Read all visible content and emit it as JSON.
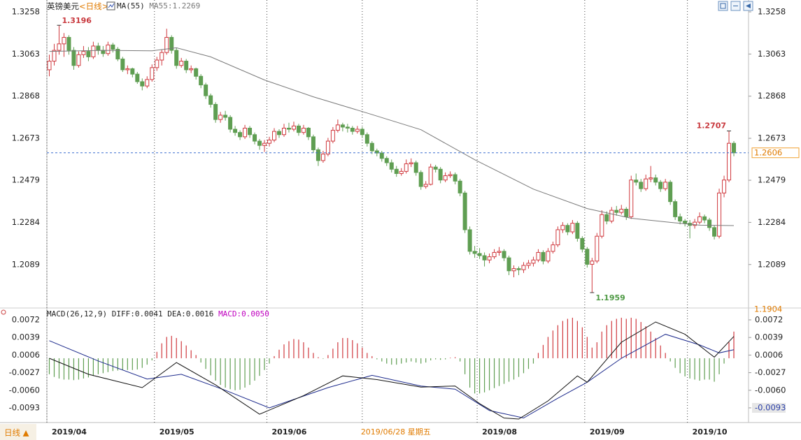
{
  "chart_data": {
    "type": "candlestick",
    "title": "英镑美元",
    "period": "<日线>",
    "indicator": "MA(55)",
    "ma_label": "MA55:1.2269",
    "period_button": "日线 ▲",
    "up_color": "#d0393e",
    "down_color": "#5f9e52",
    "ylim": [
      1.1904,
      1.3258
    ],
    "yticks": [
      1.3258,
      1.3063,
      1.2868,
      1.2673,
      1.2479,
      1.2284,
      1.2089
    ],
    "xlim": [
      -0.5,
      143
    ],
    "xticks": [
      {
        "value": -0.5,
        "label": "2019/04"
      },
      {
        "value": 21.5,
        "label": "2019/05"
      },
      {
        "value": 44.5,
        "label": "2019/06"
      },
      {
        "value": 87.5,
        "label": "2019/08"
      },
      {
        "value": 109.5,
        "label": "2019/09"
      },
      {
        "value": 130.5,
        "label": "2019/10"
      }
    ],
    "cursor": {
      "index": 64,
      "label": "2019/06/28 星期五"
    },
    "candles": [
      [
        1.299,
        1.306,
        1.296,
        1.303
      ],
      [
        1.303,
        1.311,
        1.301,
        1.308
      ],
      [
        1.308,
        1.3196,
        1.306,
        1.311
      ],
      [
        1.311,
        1.316,
        1.305,
        1.314
      ],
      [
        1.314,
        1.315,
        1.306,
        1.308
      ],
      [
        1.308,
        1.3095,
        1.299,
        1.301
      ],
      [
        1.301,
        1.3075,
        1.3,
        1.306
      ],
      [
        1.306,
        1.31,
        1.3045,
        1.3075
      ],
      [
        1.3075,
        1.3095,
        1.303,
        1.305
      ],
      [
        1.305,
        1.312,
        1.304,
        1.31
      ],
      [
        1.31,
        1.3115,
        1.306,
        1.308
      ],
      [
        1.308,
        1.31,
        1.305,
        1.3065
      ],
      [
        1.3065,
        1.312,
        1.3055,
        1.3105
      ],
      [
        1.3105,
        1.3115,
        1.307,
        1.3085
      ],
      [
        1.3085,
        1.3095,
        1.303,
        1.304
      ],
      [
        1.304,
        1.305,
        1.298,
        1.299
      ],
      [
        1.299,
        1.301,
        1.297,
        1.2995
      ],
      [
        1.2995,
        1.3,
        1.2955,
        1.297
      ],
      [
        1.297,
        1.298,
        1.2925,
        1.2935
      ],
      [
        1.2935,
        1.295,
        1.2895,
        1.2915
      ],
      [
        1.2915,
        1.296,
        1.2905,
        1.2945
      ],
      [
        1.2945,
        1.3015,
        1.2935,
        1.3
      ],
      [
        1.3,
        1.305,
        1.2985,
        1.3035
      ],
      [
        1.3035,
        1.3085,
        1.301,
        1.307
      ],
      [
        1.307,
        1.318,
        1.306,
        1.314
      ],
      [
        1.314,
        1.315,
        1.3065,
        1.308
      ],
      [
        1.308,
        1.309,
        1.2995,
        1.301
      ],
      [
        1.301,
        1.3045,
        1.3,
        1.303
      ],
      [
        1.303,
        1.304,
        1.2975,
        1.299
      ],
      [
        1.299,
        1.301,
        1.2975,
        1.2995
      ],
      [
        1.2995,
        1.3,
        1.2945,
        1.296
      ],
      [
        1.296,
        1.297,
        1.2905,
        1.292
      ],
      [
        1.292,
        1.293,
        1.2855,
        1.287
      ],
      [
        1.287,
        1.288,
        1.2815,
        1.283
      ],
      [
        1.283,
        1.284,
        1.2745,
        1.276
      ],
      [
        1.276,
        1.2795,
        1.2745,
        1.278
      ],
      [
        1.278,
        1.28,
        1.2755,
        1.277
      ],
      [
        1.277,
        1.278,
        1.27,
        1.2715
      ],
      [
        1.2715,
        1.273,
        1.2685,
        1.27
      ],
      [
        1.27,
        1.271,
        1.2665,
        1.268
      ],
      [
        1.268,
        1.2735,
        1.267,
        1.272
      ],
      [
        1.272,
        1.273,
        1.2675,
        1.269
      ],
      [
        1.269,
        1.27,
        1.2645,
        1.266
      ],
      [
        1.266,
        1.267,
        1.262,
        1.264
      ],
      [
        1.264,
        1.2665,
        1.261,
        1.265
      ],
      [
        1.265,
        1.268,
        1.2635,
        1.2665
      ],
      [
        1.2665,
        1.272,
        1.2655,
        1.2705
      ],
      [
        1.2705,
        1.2715,
        1.2675,
        1.269
      ],
      [
        1.269,
        1.274,
        1.268,
        1.272
      ],
      [
        1.272,
        1.2745,
        1.27,
        1.2715
      ],
      [
        1.2715,
        1.275,
        1.2705,
        1.273
      ],
      [
        1.273,
        1.274,
        1.2685,
        1.27
      ],
      [
        1.27,
        1.2735,
        1.269,
        1.272
      ],
      [
        1.272,
        1.2725,
        1.2665,
        1.268
      ],
      [
        1.268,
        1.269,
        1.2605,
        1.262
      ],
      [
        1.262,
        1.263,
        1.2545,
        1.257
      ],
      [
        1.257,
        1.2615,
        1.256,
        1.26
      ],
      [
        1.26,
        1.2675,
        1.259,
        1.266
      ],
      [
        1.266,
        1.2725,
        1.265,
        1.271
      ],
      [
        1.271,
        1.276,
        1.27,
        1.2735
      ],
      [
        1.2735,
        1.2745,
        1.2705,
        1.2725
      ],
      [
        1.2725,
        1.274,
        1.27,
        1.272
      ],
      [
        1.272,
        1.273,
        1.269,
        1.2705
      ],
      [
        1.2705,
        1.273,
        1.2695,
        1.2715
      ],
      [
        1.2715,
        1.2725,
        1.2675,
        1.269
      ],
      [
        1.269,
        1.27,
        1.2635,
        1.265
      ],
      [
        1.265,
        1.266,
        1.26,
        1.2615
      ],
      [
        1.2615,
        1.2625,
        1.259,
        1.2605
      ],
      [
        1.2605,
        1.2615,
        1.2565,
        1.258
      ],
      [
        1.258,
        1.259,
        1.2545,
        1.256
      ],
      [
        1.256,
        1.2575,
        1.2515,
        1.253
      ],
      [
        1.253,
        1.2545,
        1.2495,
        1.251
      ],
      [
        1.251,
        1.2535,
        1.25,
        1.252
      ],
      [
        1.252,
        1.2575,
        1.251,
        1.2555
      ],
      [
        1.2555,
        1.258,
        1.254,
        1.256
      ],
      [
        1.256,
        1.257,
        1.25,
        1.2515
      ],
      [
        1.2515,
        1.2525,
        1.2435,
        1.245
      ],
      [
        1.245,
        1.2475,
        1.244,
        1.246
      ],
      [
        1.246,
        1.2555,
        1.2455,
        1.254
      ],
      [
        1.254,
        1.255,
        1.2515,
        1.253
      ],
      [
        1.253,
        1.254,
        1.2465,
        1.248
      ],
      [
        1.248,
        1.2515,
        1.247,
        1.25
      ],
      [
        1.25,
        1.252,
        1.249,
        1.2505
      ],
      [
        1.2505,
        1.2515,
        1.246,
        1.2475
      ],
      [
        1.2475,
        1.2485,
        1.2405,
        1.242
      ],
      [
        1.242,
        1.243,
        1.2235,
        1.225
      ],
      [
        1.225,
        1.2265,
        1.2135,
        1.215
      ],
      [
        1.215,
        1.2175,
        1.212,
        1.214
      ],
      [
        1.214,
        1.2165,
        1.2115,
        1.213
      ],
      [
        1.213,
        1.2145,
        1.208,
        1.211
      ],
      [
        1.211,
        1.214,
        1.2095,
        1.2125
      ],
      [
        1.2125,
        1.216,
        1.2115,
        1.2145
      ],
      [
        1.2145,
        1.217,
        1.213,
        1.215
      ],
      [
        1.215,
        1.216,
        1.2105,
        1.212
      ],
      [
        1.212,
        1.213,
        1.204,
        1.206
      ],
      [
        1.206,
        1.2085,
        1.203,
        1.207
      ],
      [
        1.207,
        1.208,
        1.204,
        1.2065
      ],
      [
        1.2065,
        1.21,
        1.205,
        1.2085
      ],
      [
        1.2085,
        1.211,
        1.207,
        1.2095
      ],
      [
        1.2095,
        1.2125,
        1.208,
        1.211
      ],
      [
        1.211,
        1.216,
        1.21,
        1.2145
      ],
      [
        1.2145,
        1.2155,
        1.209,
        1.2105
      ],
      [
        1.2105,
        1.2165,
        1.2095,
        1.215
      ],
      [
        1.215,
        1.2195,
        1.214,
        1.218
      ],
      [
        1.218,
        1.2265,
        1.217,
        1.225
      ],
      [
        1.225,
        1.2285,
        1.2235,
        1.227
      ],
      [
        1.227,
        1.228,
        1.2225,
        1.224
      ],
      [
        1.224,
        1.2295,
        1.223,
        1.228
      ],
      [
        1.228,
        1.229,
        1.2195,
        1.221
      ],
      [
        1.221,
        1.222,
        1.2145,
        1.216
      ],
      [
        1.216,
        1.217,
        1.2075,
        1.209
      ],
      [
        1.209,
        1.212,
        1.1959,
        1.2105
      ],
      [
        1.2105,
        1.2235,
        1.2095,
        1.222
      ],
      [
        1.222,
        1.234,
        1.221,
        1.232
      ],
      [
        1.232,
        1.2335,
        1.2275,
        1.229
      ],
      [
        1.229,
        1.2355,
        1.228,
        1.234
      ],
      [
        1.234,
        1.236,
        1.2315,
        1.233
      ],
      [
        1.233,
        1.2365,
        1.232,
        1.2345
      ],
      [
        1.2345,
        1.2355,
        1.2295,
        1.231
      ],
      [
        1.231,
        1.25,
        1.23,
        1.248
      ],
      [
        1.248,
        1.251,
        1.2455,
        1.247
      ],
      [
        1.247,
        1.2485,
        1.2425,
        1.244
      ],
      [
        1.244,
        1.2505,
        1.243,
        1.2485
      ],
      [
        1.2485,
        1.2545,
        1.247,
        1.249
      ],
      [
        1.249,
        1.2505,
        1.2455,
        1.247
      ],
      [
        1.247,
        1.248,
        1.2425,
        1.244
      ],
      [
        1.244,
        1.2485,
        1.243,
        1.247
      ],
      [
        1.247,
        1.248,
        1.2365,
        1.238
      ],
      [
        1.238,
        1.239,
        1.2295,
        1.231
      ],
      [
        1.231,
        1.2325,
        1.2275,
        1.229
      ],
      [
        1.229,
        1.23,
        1.2265,
        1.228
      ],
      [
        1.228,
        1.2295,
        1.221,
        1.227
      ],
      [
        1.227,
        1.23,
        1.2255,
        1.2285
      ],
      [
        1.2285,
        1.233,
        1.2275,
        1.231
      ],
      [
        1.231,
        1.232,
        1.228,
        1.2295
      ],
      [
        1.2295,
        1.2305,
        1.2245,
        1.226
      ],
      [
        1.226,
        1.227,
        1.2205,
        1.222
      ],
      [
        1.222,
        1.244,
        1.221,
        1.242
      ],
      [
        1.242,
        1.25,
        1.24,
        1.248
      ],
      [
        1.248,
        1.2707,
        1.247,
        1.265
      ],
      [
        1.265,
        1.266,
        1.259,
        1.2606
      ]
    ],
    "ma": {
      "color": "#7a7a7a",
      "x": [
        0,
        11,
        21,
        26,
        33,
        44,
        54,
        64,
        76,
        87,
        99,
        110,
        119,
        127,
        133,
        140
      ],
      "values": [
        1.3075,
        1.308,
        1.3078,
        1.3092,
        1.305,
        1.2943,
        1.2865,
        1.2797,
        1.2713,
        1.2574,
        1.2438,
        1.2348,
        1.2303,
        1.2284,
        1.2271,
        1.2269
      ]
    },
    "macd": {
      "title": "MACD(26,12,9)",
      "diff_label": "DIFF:0.0041",
      "dea_label": "DEA:0.0016",
      "macd_label": "MACD:0.0050",
      "ylim": [
        -0.0114,
        0.0089
      ],
      "yticks": [
        0.0072,
        0.0039,
        0.0006,
        -0.0027,
        {
          "value": -0.006,
          "label": "-0.0060"
        },
        -0.0093
      ],
      "histogram": [
        -0.003,
        -0.0035,
        -0.0038,
        -0.004,
        -0.004,
        -0.0041,
        -0.004,
        -0.0038,
        -0.0036,
        -0.0033,
        -0.003,
        -0.0028,
        -0.0026,
        -0.0024,
        -0.0023,
        -0.0022,
        -0.0022,
        -0.0022,
        -0.0021,
        -0.0018,
        -0.0012,
        -0.0004,
        0.0012,
        0.0028,
        0.004,
        0.0042,
        0.0038,
        0.0032,
        0.0024,
        0.0015,
        0.0006,
        -0.0008,
        -0.002,
        -0.0032,
        -0.0042,
        -0.005,
        -0.0055,
        -0.0058,
        -0.006,
        -0.0059,
        -0.0055,
        -0.005,
        -0.0042,
        -0.0033,
        -0.0022,
        -0.001,
        0.0004,
        0.0016,
        0.0026,
        0.0032,
        0.0036,
        0.0035,
        0.003,
        0.002,
        0.001,
        0.0002,
        -0.0001,
        0.0006,
        0.0018,
        0.003,
        0.0038,
        0.0038,
        0.0034,
        0.0028,
        0.002,
        0.001,
        0.0004,
        -0.0002,
        -0.0006,
        -0.001,
        -0.0012,
        -0.0012,
        -0.001,
        -0.0008,
        -0.0006,
        -0.0008,
        -0.001,
        -0.0008,
        -0.0004,
        -0.0002,
        -0.0003,
        -0.0002,
        0.0001,
        0.0002,
        -0.0006,
        -0.003,
        -0.0055,
        -0.0066,
        -0.0066,
        -0.0064,
        -0.006,
        -0.0056,
        -0.0052,
        -0.0048,
        -0.0044,
        -0.004,
        -0.0035,
        -0.0028,
        -0.002,
        -0.001,
        0.001,
        0.0025,
        0.004,
        0.0052,
        0.0062,
        0.007,
        0.0074,
        0.0076,
        0.007,
        0.0058,
        0.004,
        0.002,
        0.003,
        0.005,
        0.0062,
        0.007,
        0.0074,
        0.0076,
        0.0074,
        0.0076,
        0.0074,
        0.0068,
        0.006,
        0.005,
        0.0038,
        0.0024,
        0.001,
        -0.0006,
        -0.0018,
        -0.0028,
        -0.0034,
        -0.0038,
        -0.004,
        -0.0042,
        -0.004,
        -0.004,
        -0.0044,
        -0.003,
        -0.001,
        0.003,
        0.005
      ],
      "diff": {
        "color": "#111111",
        "x": [
          0,
          8,
          19,
          26,
          34,
          43,
          52,
          60,
          67,
          76,
          83,
          88,
          93,
          96,
          102,
          108,
          110,
          117,
          124,
          130,
          136,
          140
        ],
        "values": [
          0.0,
          -0.003,
          -0.0055,
          -0.0008,
          -0.005,
          -0.0105,
          -0.007,
          -0.0033,
          -0.004,
          -0.0054,
          -0.0052,
          -0.0085,
          -0.0112,
          -0.0114,
          -0.008,
          -0.0033,
          -0.0045,
          0.003,
          0.0068,
          0.0045,
          0.0002,
          0.0041
        ]
      },
      "dea": {
        "color": "#1c2a8c",
        "x": [
          0,
          10,
          20,
          27,
          36,
          45,
          57,
          66,
          76,
          83,
          90,
          97,
          104,
          110,
          117,
          126,
          133,
          137,
          140
        ],
        "values": [
          0.0033,
          -0.0005,
          -0.0039,
          -0.003,
          -0.006,
          -0.0093,
          -0.0055,
          -0.0032,
          -0.0052,
          -0.0058,
          -0.0098,
          -0.0112,
          -0.0075,
          -0.0045,
          0.0,
          0.0045,
          0.0025,
          0.001,
          0.0016
        ]
      }
    }
  }
}
